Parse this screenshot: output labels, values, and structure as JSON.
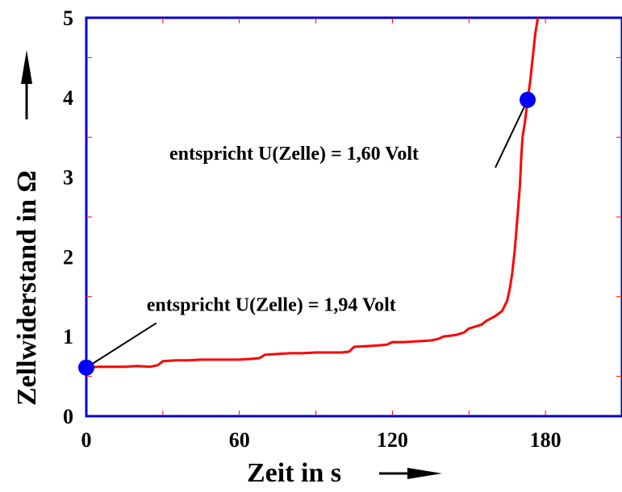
{
  "chart_data": {
    "type": "line",
    "title": "",
    "xlabel": "Zeit in s",
    "ylabel": "Zellwiderstand in Ω",
    "xlim": [
      0,
      210
    ],
    "ylim": [
      0,
      5
    ],
    "x_ticks": [
      0,
      60,
      120,
      180
    ],
    "x_tick_labels": [
      "0",
      "60",
      "120",
      "180"
    ],
    "y_ticks": [
      0,
      1,
      2,
      3,
      4,
      5
    ],
    "y_tick_labels": [
      "0",
      "1",
      "2",
      "3",
      "4",
      "5"
    ],
    "grid": false,
    "legend": "none",
    "colors": {
      "series": "#ff0000",
      "marker": "#0000ff",
      "frame": "#0000cc"
    },
    "series": [
      {
        "x": [
          0,
          5,
          10,
          15,
          20,
          25,
          28,
          30,
          35,
          40,
          45,
          50,
          55,
          60,
          65,
          68,
          70,
          75,
          80,
          85,
          90,
          95,
          100,
          103,
          105,
          110,
          115,
          118,
          120,
          125,
          130,
          135,
          138,
          140,
          145,
          148,
          150,
          155,
          157,
          160,
          163,
          165,
          166,
          167,
          168,
          169,
          170,
          170.5,
          171,
          172,
          173,
          174,
          175,
          176,
          177
        ],
        "y": [
          0.61,
          0.62,
          0.62,
          0.62,
          0.63,
          0.62,
          0.64,
          0.69,
          0.7,
          0.7,
          0.71,
          0.71,
          0.71,
          0.71,
          0.72,
          0.73,
          0.77,
          0.78,
          0.79,
          0.79,
          0.8,
          0.8,
          0.8,
          0.81,
          0.87,
          0.88,
          0.89,
          0.9,
          0.93,
          0.93,
          0.94,
          0.95,
          0.97,
          1.0,
          1.02,
          1.05,
          1.1,
          1.15,
          1.2,
          1.25,
          1.32,
          1.45,
          1.6,
          1.8,
          2.1,
          2.5,
          2.9,
          3.25,
          3.5,
          3.7,
          3.97,
          4.2,
          4.5,
          4.8,
          5.0
        ]
      }
    ],
    "markers": [
      {
        "x": 0,
        "y": 0.61
      },
      {
        "x": 173,
        "y": 3.97
      }
    ],
    "annotations": [
      {
        "text": "entspricht U(Zelle) = 1,94 Volt",
        "x": 17,
        "y": 1.32,
        "target_x": 0,
        "target_y": 0.61
      },
      {
        "text": "entspricht U(Zelle) = 1,60 Volt",
        "x": 30,
        "y": 3.22,
        "target_x": 173,
        "target_y": 3.97
      }
    ]
  }
}
